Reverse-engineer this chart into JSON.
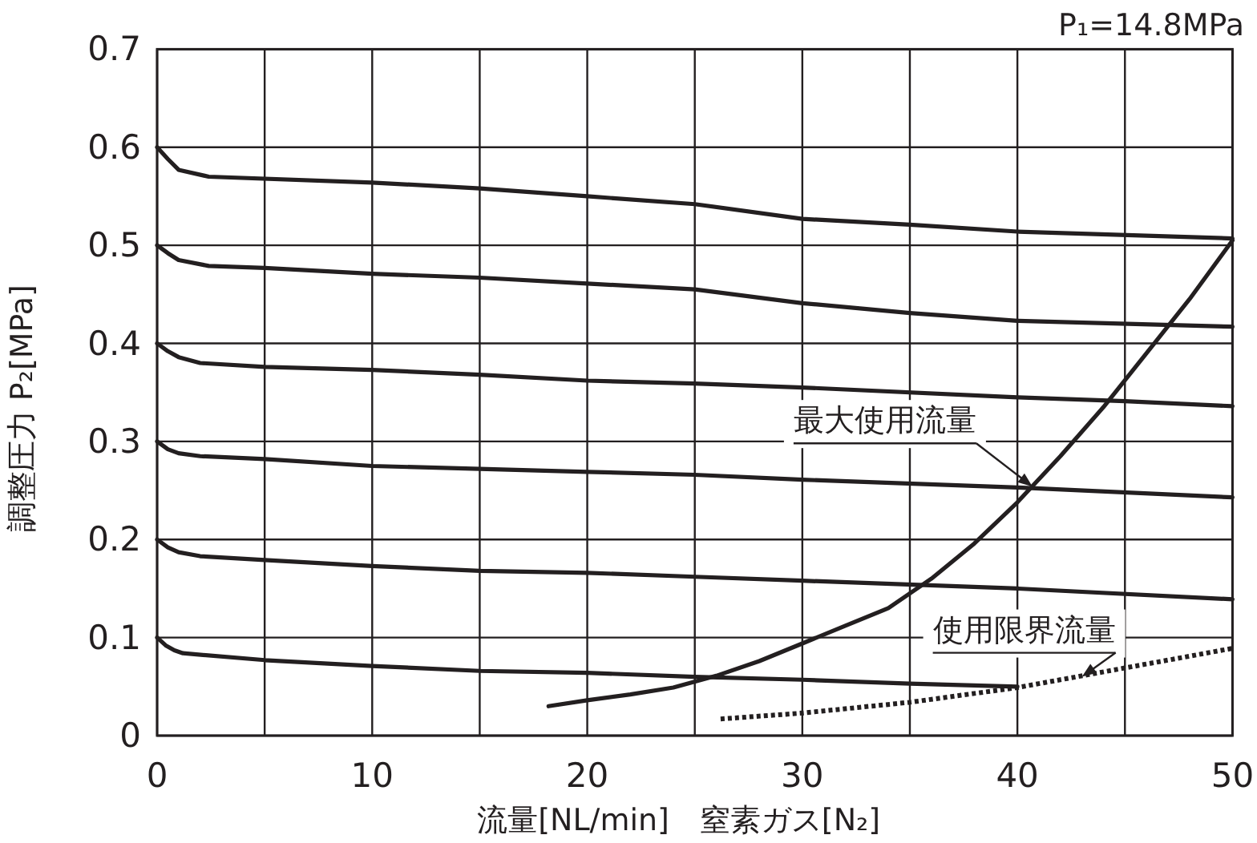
{
  "chart_data": {
    "type": "line",
    "xlabel": "流量[NL/min]　窒素ガス[N₂]",
    "ylabel": "調整圧力 P₂[MPa]",
    "xlim": [
      0,
      50
    ],
    "ylim": [
      0,
      0.7
    ],
    "xticks": [
      0,
      {
        "value": 5,
        "label": null
      },
      10,
      {
        "value": 15,
        "label": null
      },
      20,
      {
        "value": 25,
        "label": null
      },
      30,
      {
        "value": 35,
        "label": null
      },
      40,
      {
        "value": 45,
        "label": null
      },
      50
    ],
    "yticks": [
      0,
      0.1,
      0.2,
      0.3,
      0.4,
      0.5,
      0.6,
      0.7
    ],
    "grid": true,
    "marker": "none",
    "series": [
      {
        "color": "#231f20",
        "line_style": "solid",
        "x": [
          0,
          0.5,
          1,
          2.4,
          10,
          15,
          20,
          25,
          30,
          35,
          40,
          50
        ],
        "values": [
          0.6,
          0.588,
          0.577,
          0.57,
          0.564,
          0.558,
          0.55,
          0.542,
          0.527,
          0.521,
          0.514,
          0.507
        ]
      },
      {
        "color": "#231f20",
        "line_style": "solid",
        "x": [
          0,
          0.5,
          1,
          2.4,
          5,
          10,
          15,
          20,
          25,
          30,
          35,
          40,
          50
        ],
        "values": [
          0.5,
          0.492,
          0.485,
          0.479,
          0.477,
          0.471,
          0.467,
          0.461,
          0.455,
          0.441,
          0.431,
          0.423,
          0.417
        ]
      },
      {
        "color": "#231f20",
        "line_style": "solid",
        "x": [
          0,
          0.5,
          1,
          2,
          5,
          10,
          15,
          20,
          25,
          30,
          40,
          45,
          50
        ],
        "values": [
          0.4,
          0.392,
          0.386,
          0.38,
          0.376,
          0.373,
          0.368,
          0.362,
          0.359,
          0.355,
          0.345,
          0.341,
          0.336
        ]
      },
      {
        "color": "#231f20",
        "line_style": "solid",
        "x": [
          0,
          0.5,
          1,
          2,
          5,
          10,
          15,
          20,
          25,
          30,
          40,
          50
        ],
        "values": [
          0.3,
          0.292,
          0.288,
          0.285,
          0.282,
          0.275,
          0.272,
          0.269,
          0.266,
          0.261,
          0.253,
          0.243
        ]
      },
      {
        "color": "#231f20",
        "line_style": "solid",
        "x": [
          0,
          0.5,
          1,
          2,
          5,
          10,
          15,
          20,
          25,
          30,
          40,
          50
        ],
        "values": [
          0.2,
          0.192,
          0.187,
          0.183,
          0.179,
          0.173,
          0.168,
          0.166,
          0.162,
          0.158,
          0.15,
          0.139
        ]
      },
      {
        "color": "#231f20",
        "line_style": "solid",
        "x": [
          0,
          0.4,
          0.8,
          1.2,
          5,
          10,
          15,
          20,
          25,
          30,
          35,
          40
        ],
        "values": [
          0.1,
          0.092,
          0.087,
          0.084,
          0.077,
          0.071,
          0.066,
          0.064,
          0.06,
          0.057,
          0.053,
          0.05
        ]
      },
      {
        "color": "#231f20",
        "line_style": "solid",
        "x": [
          18.2,
          20,
          22,
          24,
          26,
          28,
          30,
          32,
          34,
          36,
          38,
          40,
          42,
          44,
          46,
          48,
          50
        ],
        "values": [
          0.03,
          0.036,
          0.042,
          0.049,
          0.061,
          0.076,
          0.094,
          0.112,
          0.13,
          0.16,
          0.196,
          0.238,
          0.285,
          0.335,
          0.39,
          0.445,
          0.505
        ]
      },
      {
        "color": "#231f20",
        "line_style": "dotted",
        "x": [
          26.2,
          30,
          35,
          40,
          45,
          50
        ],
        "values": [
          0.017,
          0.023,
          0.034,
          0.049,
          0.069,
          0.089
        ]
      }
    ],
    "annotations": [
      "P₁=14.8MPa",
      {
        "text": "最大使用流量",
        "x": 40.7,
        "y": 0.254
      },
      {
        "text": "使用限界流量",
        "x": 43,
        "y": 0.06
      }
    ]
  }
}
